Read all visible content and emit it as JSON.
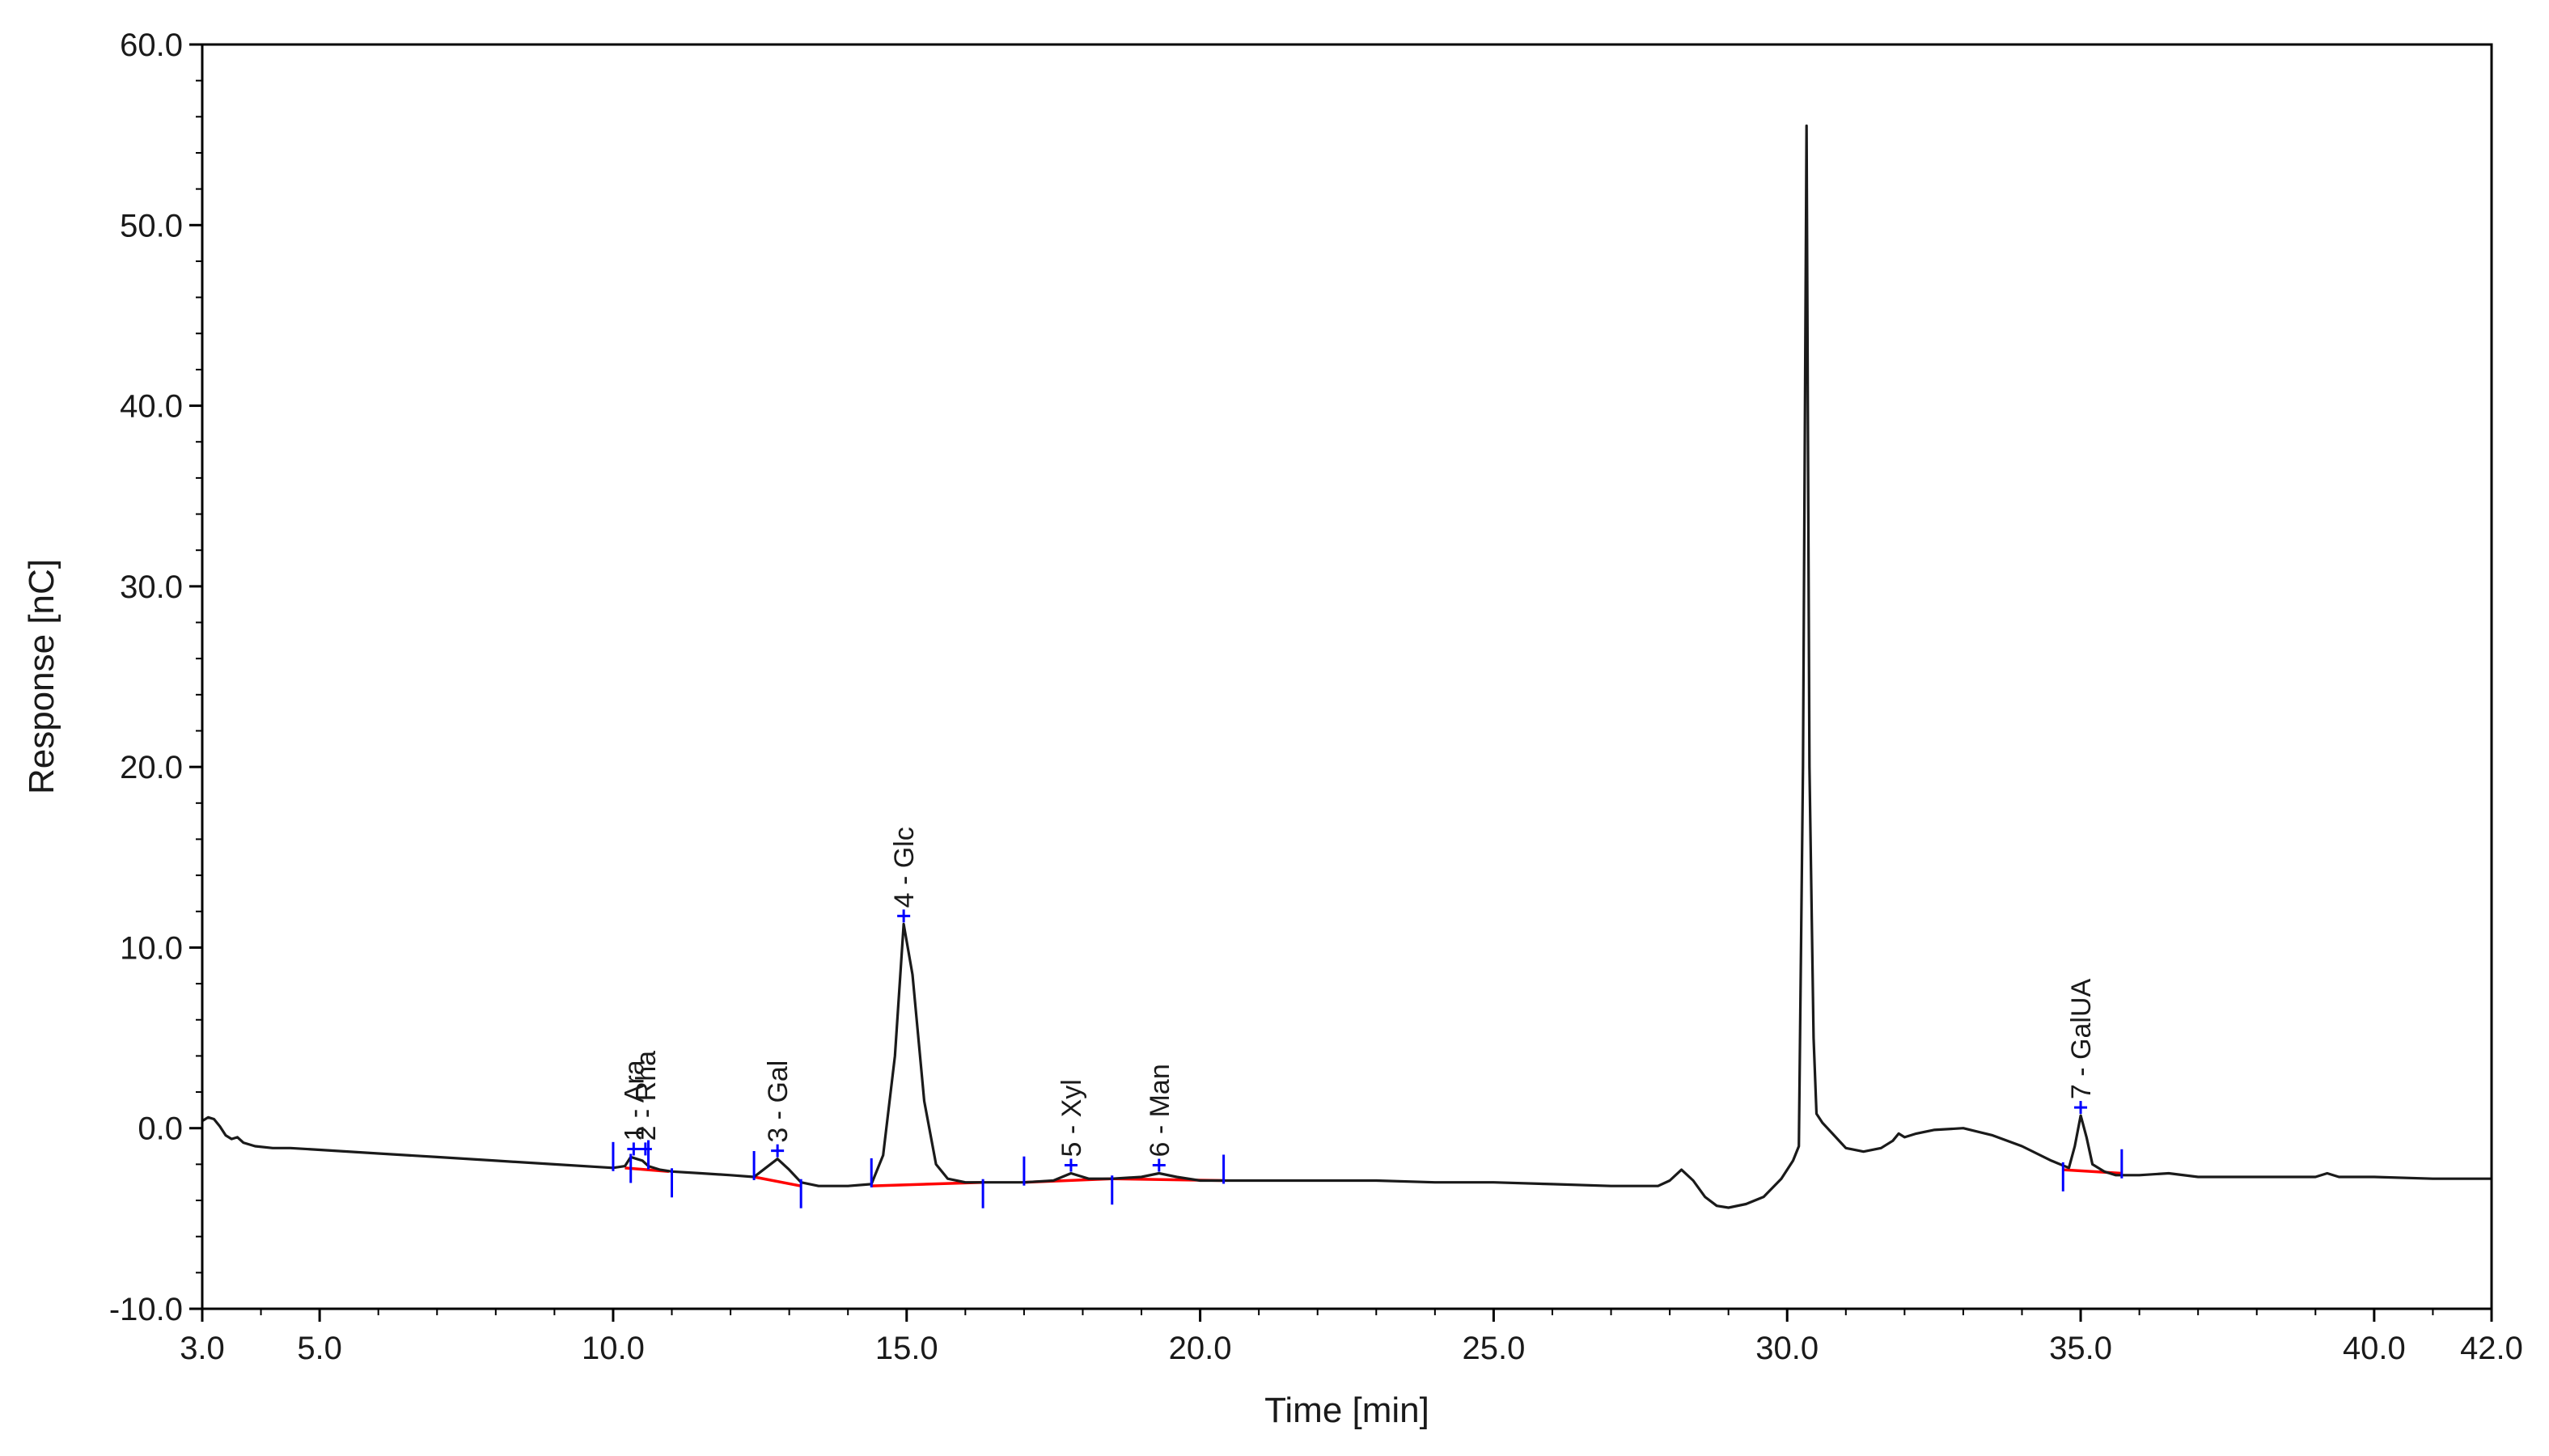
{
  "chart_data": {
    "type": "line",
    "xlabel": "Time [min]",
    "ylabel": "Response [nC]",
    "xlim": [
      3.0,
      42.0
    ],
    "ylim": [
      -10.0,
      60.0
    ],
    "grid": false,
    "x_tick_labels": [
      "3.0",
      "5.0",
      "10.0",
      "15.0",
      "20.0",
      "25.0",
      "30.0",
      "35.0",
      "40.0",
      "42.0"
    ],
    "y_tick_labels": [
      "-10.0",
      "0.0",
      "10.0",
      "20.0",
      "30.0",
      "40.0",
      "50.0",
      "60.0"
    ],
    "colors": {
      "trace": "#1a1a1a",
      "baseline": "#ff0000",
      "markers": "#0000ff",
      "axis": "#000000"
    },
    "series": [
      {
        "x": [
          3.0,
          3.1,
          3.2,
          3.3,
          3.4,
          3.5,
          3.6,
          3.7,
          3.9,
          4.2,
          4.5,
          5.0,
          6.0,
          7.0,
          8.0,
          9.0,
          10.0,
          10.2,
          10.3,
          10.4,
          10.5,
          10.6,
          10.8,
          11.0,
          11.5,
          12.0,
          12.4,
          12.6,
          12.8,
          13.0,
          13.2,
          13.5,
          14.0,
          14.4,
          14.6,
          14.8,
          14.95,
          15.1,
          15.3,
          15.5,
          15.7,
          16.0,
          17.0,
          17.5,
          17.8,
          18.1,
          18.5,
          19.0,
          19.3,
          19.6,
          20.0,
          21.0,
          22.0,
          23.0,
          24.0,
          25.0,
          26.0,
          27.0,
          27.8,
          28.0,
          28.2,
          28.4,
          28.6,
          28.8,
          29.0,
          29.3,
          29.6,
          29.9,
          30.1,
          30.2,
          30.27,
          30.33,
          30.38,
          30.45,
          30.5,
          30.6,
          30.8,
          31.0,
          31.3,
          31.6,
          31.8,
          31.9,
          32.0,
          32.2,
          32.5,
          33.0,
          33.5,
          34.0,
          34.5,
          34.8,
          34.9,
          35.0,
          35.1,
          35.2,
          35.4,
          35.6,
          36.0,
          36.5,
          37.0,
          38.0,
          39.0,
          39.2,
          39.4,
          40.0,
          41.0,
          42.0
        ],
        "y": [
          0.4,
          0.6,
          0.5,
          0.1,
          -0.4,
          -0.6,
          -0.5,
          -0.8,
          -1.0,
          -1.1,
          -1.1,
          -1.2,
          -1.4,
          -1.6,
          -1.8,
          -2.0,
          -2.2,
          -2.1,
          -1.6,
          -1.7,
          -1.8,
          -2.1,
          -2.3,
          -2.4,
          -2.5,
          -2.6,
          -2.7,
          -2.2,
          -1.7,
          -2.3,
          -3.0,
          -3.2,
          -3.2,
          -3.1,
          -1.5,
          4.0,
          11.3,
          8.5,
          1.5,
          -2.0,
          -2.8,
          -3.0,
          -3.0,
          -2.9,
          -2.5,
          -2.8,
          -2.8,
          -2.7,
          -2.5,
          -2.7,
          -2.9,
          -2.9,
          -2.9,
          -2.9,
          -3.0,
          -3.0,
          -3.1,
          -3.2,
          -3.2,
          -2.9,
          -2.3,
          -2.9,
          -3.8,
          -4.3,
          -4.4,
          -4.2,
          -3.8,
          -2.8,
          -1.8,
          -1.0,
          20.0,
          55.5,
          20.0,
          5.0,
          0.8,
          0.3,
          -0.4,
          -1.1,
          -1.3,
          -1.1,
          -0.7,
          -0.3,
          -0.5,
          -0.3,
          -0.1,
          0.0,
          -0.4,
          -1.0,
          -1.8,
          -2.2,
          -1.0,
          0.7,
          -0.5,
          -2.0,
          -2.4,
          -2.6,
          -2.6,
          -2.5,
          -2.7,
          -2.7,
          -2.7,
          -2.5,
          -2.7,
          -2.7,
          -2.8,
          -2.8
        ]
      }
    ],
    "peaks": [
      {
        "label": "1 - Ara",
        "x": 10.35
      },
      {
        "label": "2 - Rha",
        "x": 10.55
      },
      {
        "label": "3 - Gal",
        "x": 12.8
      },
      {
        "label": "4 - Glc",
        "x": 14.95
      },
      {
        "label": "5 - Xyl",
        "x": 17.8
      },
      {
        "label": "6 - Man",
        "x": 19.3
      },
      {
        "label": "7 - GalUA",
        "x": 35.0
      }
    ],
    "integration_markers": [
      10.0,
      10.3,
      10.6,
      11.0,
      12.4,
      13.2,
      14.4,
      16.3,
      17.0,
      18.5,
      20.4,
      34.7,
      35.7
    ],
    "integration_baselines": [
      {
        "x": [
          10.2,
          10.95
        ],
        "y": [
          -2.2,
          -2.4
        ]
      },
      {
        "x": [
          12.4,
          13.2
        ],
        "y": [
          -2.7,
          -3.2
        ]
      },
      {
        "x": [
          14.4,
          16.3
        ],
        "y": [
          -3.2,
          -3.0
        ]
      },
      {
        "x": [
          17.0,
          18.5
        ],
        "y": [
          -3.0,
          -2.8
        ]
      },
      {
        "x": [
          18.5,
          20.4
        ],
        "y": [
          -2.8,
          -2.9
        ]
      },
      {
        "x": [
          34.7,
          35.7
        ],
        "y": [
          -2.3,
          -2.5
        ]
      }
    ]
  }
}
